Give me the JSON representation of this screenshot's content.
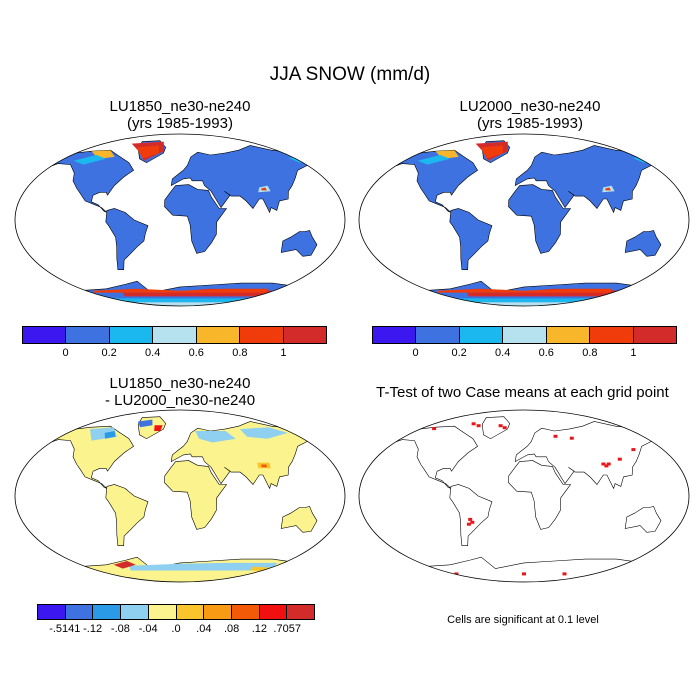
{
  "title": "JJA SNOW (mm/d)",
  "panels": [
    {
      "title": "LU1850_ne30-ne240\n(yrs 1985-1993)"
    },
    {
      "title": "LU2000_ne30-ne240\n(yrs 1985-1993)"
    },
    {
      "title": "LU1850_ne30-ne240\n- LU2000_ne30-ne240"
    },
    {
      "title": "T-Test of two Case means at each grid point"
    }
  ],
  "colorbar_abs": {
    "colors": [
      "#3c17f0",
      "#3d72e0",
      "#1ab8ee",
      "#b6e2f0",
      "#f8b72b",
      "#f03c0a",
      "#d32a2a"
    ],
    "labels": [
      "0",
      "0.2",
      "0.4",
      "0.6",
      "0.8",
      "1"
    ]
  },
  "colorbar_diff": {
    "colors": [
      "#3c17f0",
      "#3d72e0",
      "#2a9ae6",
      "#8fd0f0",
      "#fbf38e",
      "#f8c62c",
      "#f89a14",
      "#f25a07",
      "#f01010",
      "#d32a2a"
    ],
    "labels": [
      "-.5141",
      "-.12",
      "-.08",
      "-.04",
      ".0",
      ".04",
      ".08",
      ".12",
      ".7057"
    ]
  },
  "ttest_note": "Cells are significant at 0.1 level",
  "map_colors": {
    "ocean": "#ffffff",
    "land_abs": "#3d72e0",
    "land_diff": "#fbf38e",
    "land_ttest": "#ffffff",
    "significant": "#e8161a"
  }
}
